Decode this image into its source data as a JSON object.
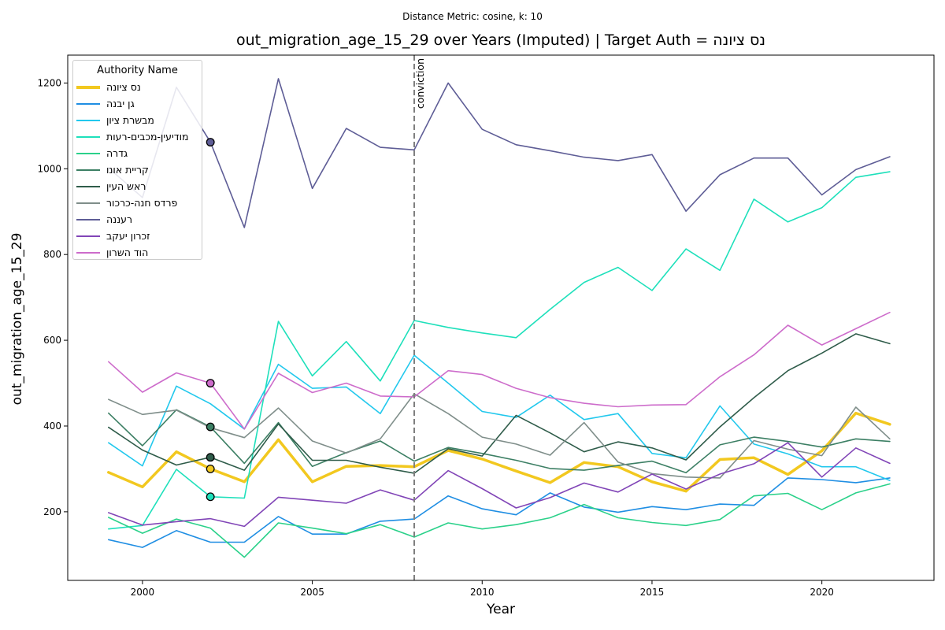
{
  "chart_data": {
    "type": "line",
    "suptitle": "Distance Metric: cosine, k: 10",
    "title": "out_migration_age_15_29 over Years (Imputed) | Target Auth = נס ציונה",
    "xlabel": "Year",
    "ylabel": "out_migration_age_15_29",
    "xlim": [
      1997.8,
      2023.3
    ],
    "ylim": [
      40,
      1265
    ],
    "xticks": [
      2000,
      2005,
      2010,
      2015,
      2020
    ],
    "yticks": [
      200,
      400,
      600,
      800,
      1000,
      1200
    ],
    "grid": false,
    "legend_title": "Authority Name",
    "legend_position": "top-left",
    "x": [
      1999,
      2000,
      2001,
      2002,
      2003,
      2004,
      2005,
      2006,
      2007,
      2008,
      2009,
      2010,
      2011,
      2012,
      2013,
      2014,
      2015,
      2016,
      2017,
      2018,
      2019,
      2020,
      2021,
      2022
    ],
    "vertical_line": {
      "x": 2008,
      "label": "conviction",
      "color": "#7f7f7f",
      "style": "dashed"
    },
    "series": [
      {
        "name": "נס ציונה",
        "color": "#f2c81f",
        "width": 3.5,
        "target": true,
        "values": [
          292,
          258,
          340,
          300,
          270,
          368,
          270,
          306,
          308,
          305,
          343,
          323,
          295,
          268,
          315,
          305,
          270,
          248,
          322,
          326,
          287,
          342,
          430,
          404
        ]
      },
      {
        "name": "גן יבנה",
        "color": "#1f8ee3",
        "width": 1.6,
        "values": [
          135,
          117,
          156,
          129,
          129,
          189,
          148,
          148,
          178,
          183,
          237,
          207,
          193,
          244,
          211,
          199,
          212,
          205,
          218,
          215,
          279,
          275,
          268,
          279
        ]
      },
      {
        "name": "מבשרת ציון",
        "color": "#22c8ed",
        "width": 1.6,
        "values": [
          361,
          307,
          493,
          452,
          393,
          544,
          488,
          491,
          429,
          565,
          500,
          434,
          420,
          472,
          415,
          429,
          336,
          326,
          447,
          358,
          335,
          305,
          305,
          273
        ]
      },
      {
        "name": "מודיעין-מכבים-רעות",
        "color": "#1ee0bb",
        "width": 1.6,
        "values": [
          160,
          168,
          299,
          235,
          232,
          644,
          517,
          597,
          505,
          646,
          630,
          617,
          606,
          672,
          735,
          770,
          716,
          813,
          763,
          929,
          876,
          909,
          980,
          993
        ]
      },
      {
        "name": "גדרה",
        "color": "#2bd18a",
        "width": 1.6,
        "values": [
          187,
          150,
          183,
          162,
          94,
          174,
          162,
          149,
          170,
          141,
          174,
          160,
          170,
          186,
          217,
          186,
          175,
          168,
          182,
          237,
          243,
          205,
          244,
          265
        ]
      },
      {
        "name": "קריית אונו",
        "color": "#3c7f64",
        "width": 1.6,
        "values": [
          430,
          354,
          438,
          398,
          313,
          408,
          306,
          338,
          365,
          318,
          350,
          336,
          320,
          301,
          297,
          308,
          318,
          291,
          356,
          374,
          364,
          351,
          370,
          364
        ]
      },
      {
        "name": "ראש העין",
        "color": "#2f5c4a",
        "width": 1.6,
        "values": [
          397,
          344,
          309,
          327,
          297,
          405,
          320,
          320,
          304,
          290,
          347,
          330,
          425,
          384,
          340,
          363,
          349,
          321,
          398,
          466,
          529,
          570,
          615,
          592
        ]
      },
      {
        "name": "פרדס חנה-כרכור",
        "color": "#7f8e8a",
        "width": 1.6,
        "values": [
          462,
          427,
          437,
          396,
          373,
          442,
          365,
          337,
          370,
          475,
          429,
          374,
          358,
          332,
          408,
          316,
          289,
          281,
          279,
          366,
          346,
          331,
          444,
          370
        ]
      },
      {
        "name": "רעננה",
        "color": "#5e5d96",
        "width": 1.6,
        "values": [
          1002,
          933,
          1190,
          1062,
          863,
          1210,
          954,
          1094,
          1050,
          1044,
          1200,
          1092,
          1056,
          1042,
          1027,
          1019,
          1033,
          901,
          986,
          1025,
          1025,
          939,
          998,
          1028
        ]
      },
      {
        "name": "זכרון יעקב",
        "color": "#8145b7",
        "width": 1.6,
        "values": [
          198,
          169,
          177,
          184,
          166,
          234,
          227,
          220,
          251,
          227,
          296,
          254,
          209,
          233,
          267,
          246,
          288,
          253,
          288,
          312,
          361,
          281,
          349,
          313
        ]
      },
      {
        "name": "הוד השרון",
        "color": "#cd6ccb",
        "width": 1.6,
        "values": [
          550,
          479,
          524,
          500,
          393,
          523,
          478,
          500,
          470,
          468,
          529,
          520,
          488,
          466,
          453,
          445,
          449,
          450,
          515,
          566,
          635,
          589,
          627,
          665
        ]
      }
    ],
    "highlight_year": 2002,
    "highlight_markers": [
      {
        "series": "רעננה",
        "value": 1062
      },
      {
        "series": "הוד השרון",
        "value": 500
      },
      {
        "series": "קריית אונו",
        "value": 398
      },
      {
        "series": "ראש העין",
        "value": 327
      },
      {
        "series": "נס ציונה",
        "value": 300
      },
      {
        "series": "מודיעין-מכבים-רעות",
        "value": 235
      }
    ]
  }
}
